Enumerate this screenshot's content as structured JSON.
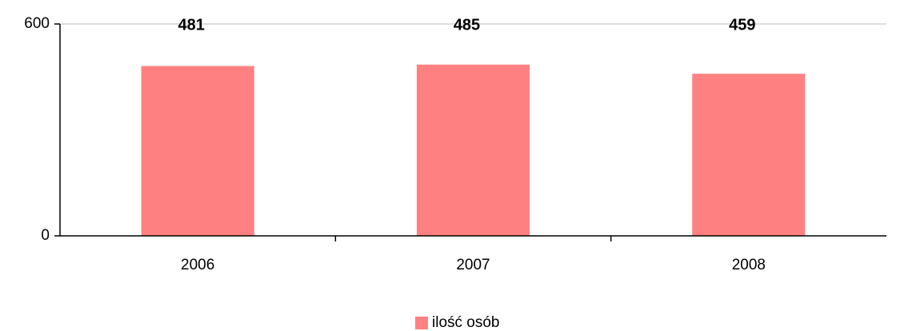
{
  "chart_data": {
    "type": "bar",
    "categories": [
      "2006",
      "2007",
      "2008"
    ],
    "series": [
      {
        "name": "ilość osób",
        "color": "#ff8080",
        "values": [
          481,
          485,
          459
        ]
      }
    ],
    "ylim": [
      0,
      600
    ],
    "yticks": [
      0,
      600
    ],
    "grid": true,
    "legend": "bottom"
  }
}
